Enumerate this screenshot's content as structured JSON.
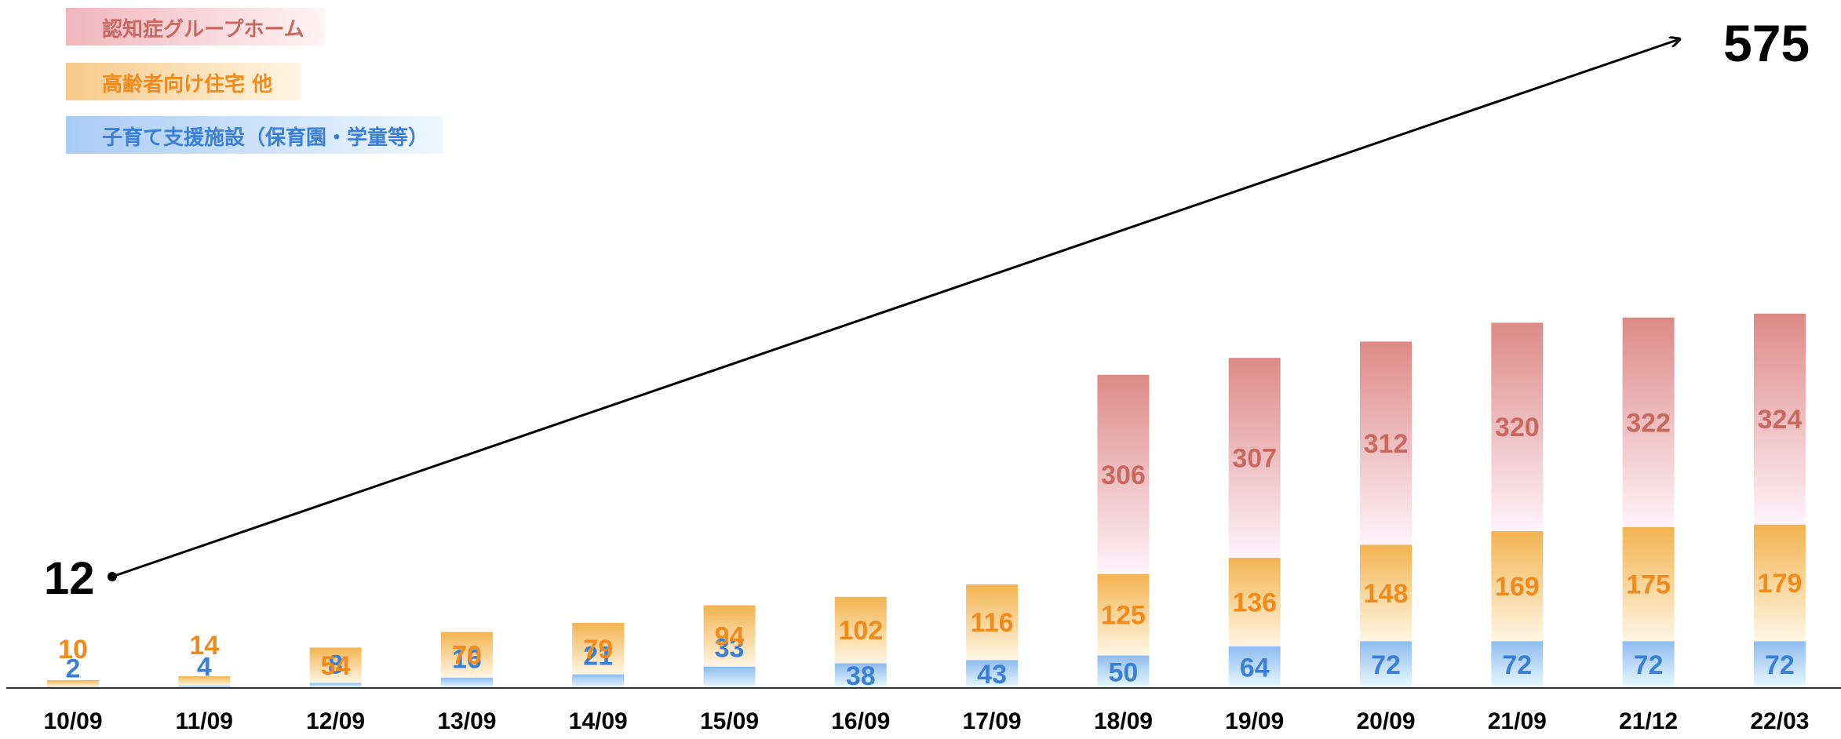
{
  "chart_data": {
    "type": "bar",
    "stacked": true,
    "categories": [
      "10/09",
      "11/09",
      "12/09",
      "13/09",
      "14/09",
      "15/09",
      "16/09",
      "17/09",
      "18/09",
      "19/09",
      "20/09",
      "21/09",
      "21/12",
      "22/03"
    ],
    "series": [
      {
        "name": "子育て支援施設（保育園・学童等）",
        "color": "#3a7fd5",
        "values": [
          2,
          4,
          8,
          16,
          21,
          33,
          38,
          43,
          50,
          64,
          72,
          72,
          72,
          72
        ]
      },
      {
        "name": "高齢者向け住宅 他",
        "color": "#ef8a1c",
        "values": [
          10,
          14,
          54,
          70,
          79,
          94,
          102,
          116,
          125,
          136,
          148,
          169,
          175,
          179
        ]
      },
      {
        "name": "認知症グループホーム",
        "color": "#c8685f",
        "values": [
          0,
          0,
          0,
          0,
          0,
          0,
          0,
          0,
          306,
          307,
          312,
          320,
          322,
          324
        ]
      }
    ],
    "annotations": {
      "start_total": "12",
      "end_total": "575"
    },
    "legend_position": "top-left",
    "grid": false
  }
}
